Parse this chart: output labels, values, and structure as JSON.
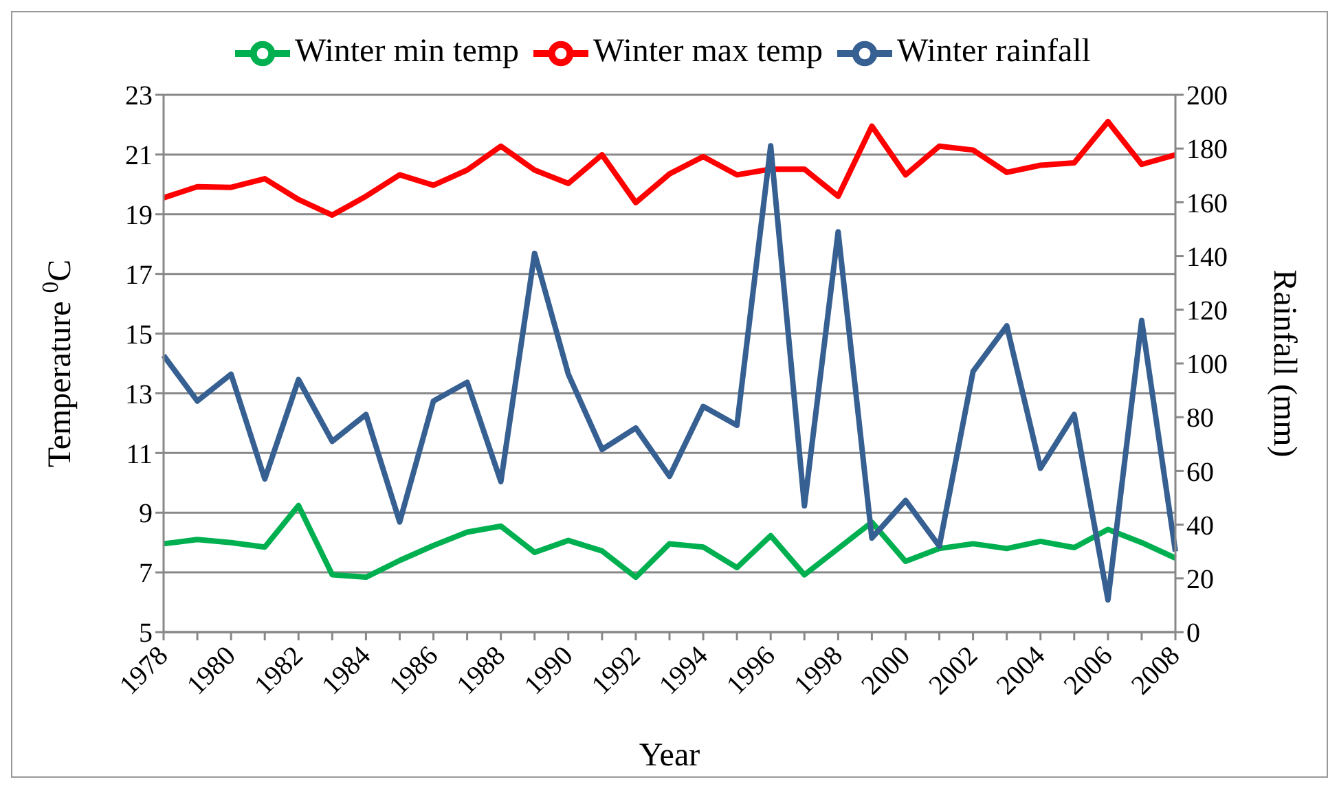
{
  "chart_data": {
    "type": "line",
    "xlabel": "Year",
    "ylabel": "Temperature $^{0}$C",
    "y2label": "Rainfall (mm)",
    "categories": [
      "1978",
      null,
      "1980",
      null,
      "1982",
      null,
      "1984",
      null,
      "1986",
      null,
      "1988",
      null,
      "1990",
      null,
      "1992",
      null,
      "1994",
      null,
      "1996",
      null,
      "1998",
      null,
      "2000",
      null,
      "2002",
      null,
      "2004",
      null,
      "2006",
      null,
      "2008"
    ],
    "series": [
      {
        "name": "Winter min temp",
        "color": "#00b050",
        "values": [
          7.96,
          8.1,
          8.0,
          7.85,
          9.24,
          6.92,
          6.84,
          7.4,
          7.9,
          8.35,
          8.55,
          7.67,
          8.07,
          7.72,
          6.84,
          7.96,
          7.85,
          7.16,
          8.23,
          6.92,
          7.8,
          8.68,
          7.37,
          7.8,
          7.96,
          7.8,
          8.04,
          7.83,
          8.44,
          8.0,
          7.48
        ]
      },
      {
        "name": "Winter max temp",
        "color": "#ff0000",
        "values": [
          19.55,
          19.92,
          19.9,
          20.19,
          19.49,
          18.97,
          19.6,
          20.32,
          19.97,
          20.48,
          21.28,
          20.48,
          20.03,
          20.99,
          19.39,
          20.35,
          20.93,
          20.32,
          20.51,
          20.51,
          19.6,
          21.95,
          20.32,
          21.28,
          21.15,
          20.4,
          20.64,
          20.72,
          22.1,
          20.67,
          20.99
        ]
      },
      {
        "name": "Winter rainfall",
        "color": "#376092",
        "axis": "y2",
        "values": [
          103,
          86,
          96,
          57,
          94,
          71,
          81,
          41,
          86,
          93,
          56,
          141,
          96,
          68,
          76,
          58,
          84,
          77,
          181,
          47,
          149,
          35,
          49,
          32,
          97,
          114,
          61,
          81,
          12,
          116,
          30
        ]
      }
    ],
    "ylim": [
      5,
      23
    ],
    "yticks": [
      5,
      7,
      9,
      11,
      13,
      15,
      17,
      19,
      21,
      23
    ],
    "y2lim": [
      0,
      200
    ],
    "y2ticks": [
      0,
      20,
      40,
      60,
      80,
      100,
      120,
      140,
      160,
      180,
      200
    ],
    "grid": "y",
    "legend": "top",
    "marker": "none",
    "line_style": "solid"
  }
}
